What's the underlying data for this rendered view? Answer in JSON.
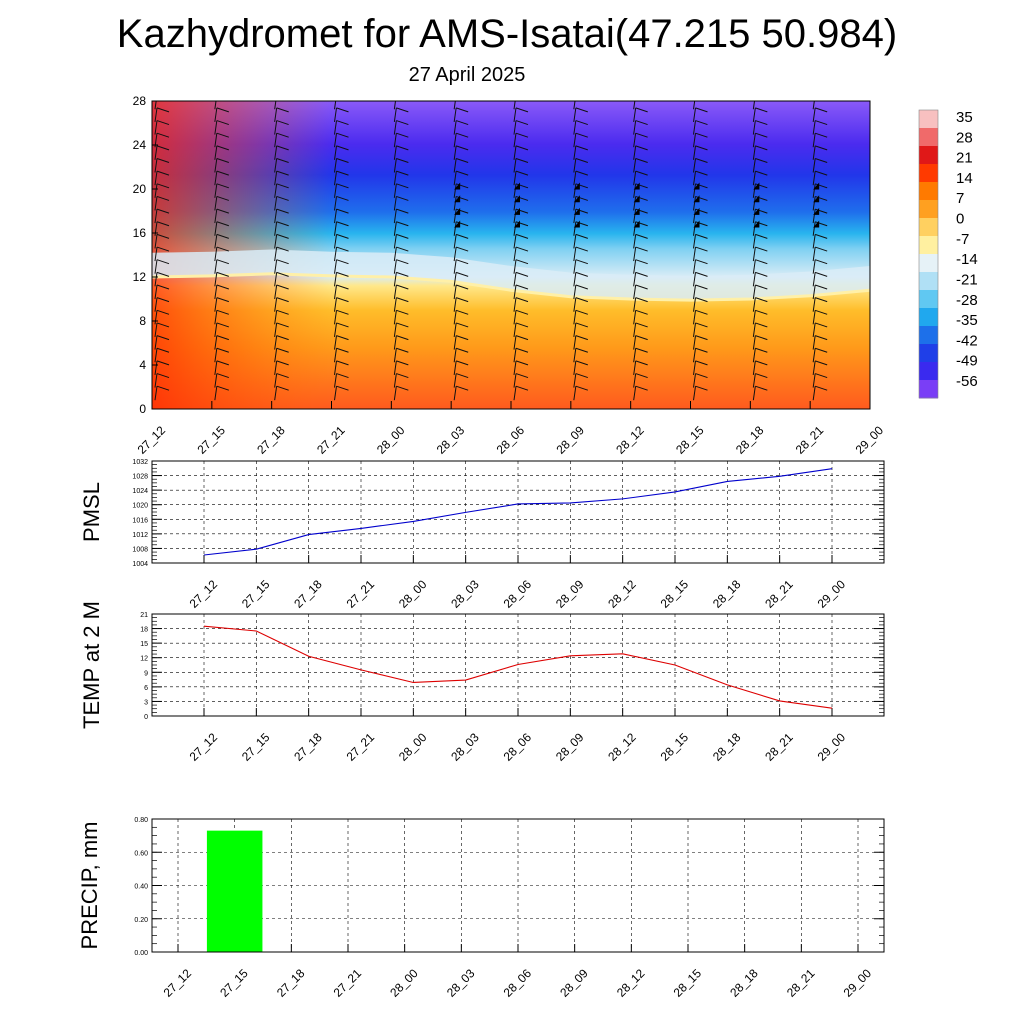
{
  "title": "Kazhydromet for AMS-Isatai(47.215 50.984)",
  "subtitle": "27 April 2025",
  "chart_data": [
    {
      "type": "heatmap",
      "name": "vertical-profile",
      "categories": [
        "27_12",
        "27_15",
        "27_18",
        "27_21",
        "28_00",
        "28_03",
        "28_06",
        "28_09",
        "28_12",
        "28_15",
        "28_18",
        "28_21",
        "29_00"
      ],
      "y_ticks": [
        "0",
        "4",
        "8",
        "12",
        "16",
        "20",
        "24",
        "28"
      ],
      "ylim": [
        0,
        28
      ],
      "freezing_level": [
        12,
        12.1,
        12.3,
        12.1,
        12.0,
        11.6,
        10.8,
        10.2,
        10.0,
        9.9,
        10.0,
        10.3,
        10.8
      ],
      "colorbar_labels": [
        "35",
        "28",
        "21",
        "14",
        "7",
        "0",
        "-7",
        "-14",
        "-21",
        "-28",
        "-35",
        "-42",
        "-49",
        "-56"
      ],
      "wind_barbs": true
    },
    {
      "type": "line",
      "ylabel": "PMSL",
      "categories": [
        "27_12",
        "27_15",
        "27_18",
        "27_21",
        "28_00",
        "28_03",
        "28_06",
        "28_09",
        "28_12",
        "28_15",
        "28_18",
        "28_21",
        "29_00"
      ],
      "y_ticks": [
        "1004",
        "1008",
        "1012",
        "1016",
        "1020",
        "1024",
        "1028",
        "1032"
      ],
      "ylim": [
        1004,
        1032
      ],
      "values": [
        1006.2,
        1007.8,
        1011.8,
        1013.5,
        1015.4,
        1017.9,
        1020.2,
        1020.5,
        1021.6,
        1023.5,
        1026.4,
        1027.8,
        1029.9
      ],
      "color": "#0000cc"
    },
    {
      "type": "line",
      "ylabel": "TEMP at 2 M",
      "categories": [
        "27_12",
        "27_15",
        "27_18",
        "27_21",
        "28_00",
        "28_03",
        "28_06",
        "28_09",
        "28_12",
        "28_15",
        "28_18",
        "28_21",
        "29_00"
      ],
      "y_ticks": [
        "0",
        "3",
        "6",
        "9",
        "12",
        "15",
        "18",
        "21"
      ],
      "ylim": [
        0,
        21
      ],
      "values": [
        18.5,
        17.5,
        12.3,
        9.5,
        6.9,
        7.4,
        10.6,
        12.4,
        12.8,
        10.5,
        6.4,
        3.1,
        1.6
      ],
      "color": "#dd0000"
    },
    {
      "type": "bar",
      "ylabel": "PRECIP, mm",
      "categories": [
        "27_12",
        "27_15",
        "27_18",
        "27_21",
        "28_00",
        "28_03",
        "28_06",
        "28_09",
        "28_12",
        "28_15",
        "28_18",
        "28_21",
        "29_00"
      ],
      "y_ticks": [
        "0.00",
        "0.20",
        "0.40",
        "0.60",
        "0.80"
      ],
      "ylim": [
        0,
        0.8
      ],
      "values": [
        0,
        0.73,
        0,
        0,
        0,
        0,
        0,
        0,
        0,
        0,
        0,
        0,
        0
      ],
      "color": "#00ff00"
    }
  ]
}
